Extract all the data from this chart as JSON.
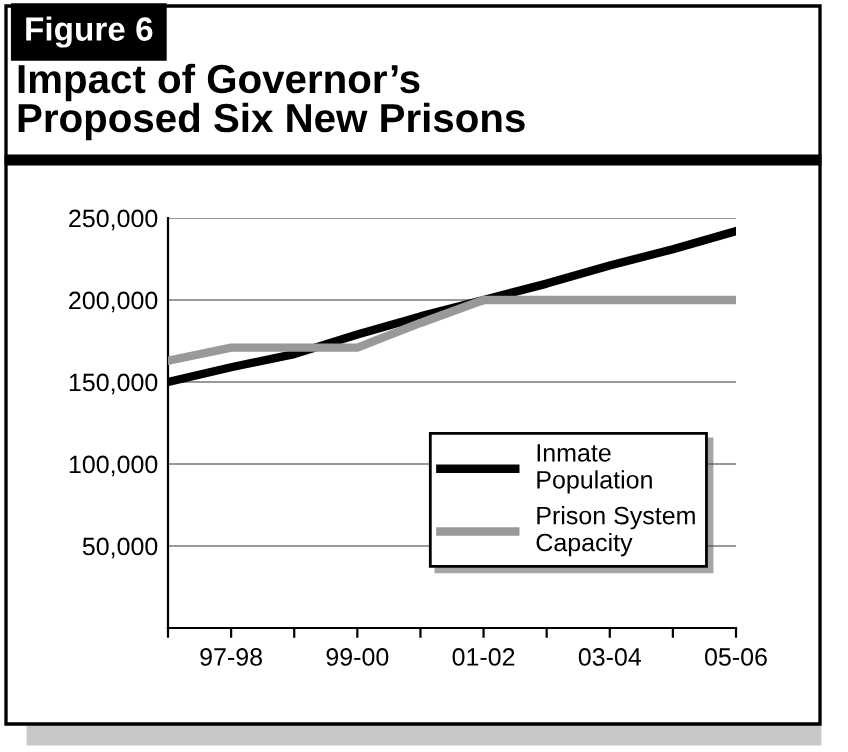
{
  "chart_data": {
    "type": "line",
    "title": "Impact of Governor’s\nProposed Six New Prisons",
    "annotations": [
      "Figure 6"
    ],
    "categories": [
      null,
      "97-98",
      null,
      "99-00",
      null,
      "01-02",
      null,
      "03-04",
      null,
      "05-06"
    ],
    "series": [
      {
        "name": "Inmate\nPopulation",
        "color": "#000000",
        "values": [
          150000,
          159000,
          167000,
          179000,
          190000,
          200000,
          210000,
          221000,
          231000,
          242000
        ]
      },
      {
        "name": "Prison System\nCapacity",
        "color": "#999999",
        "values": [
          163000,
          171000,
          171000,
          171000,
          186000,
          200000,
          200000,
          200000,
          200000,
          200000
        ]
      }
    ],
    "ylim": [
      0,
      250000
    ],
    "yticks": [
      {
        "value": 0,
        "label": null
      },
      {
        "value": 50000,
        "label": "50,000"
      },
      {
        "value": 100000,
        "label": "100,000"
      },
      {
        "value": 150000,
        "label": "150,000"
      },
      {
        "value": 200000,
        "label": "200,000"
      },
      {
        "value": 250000,
        "label": "250,000"
      }
    ],
    "grid": "y",
    "legend": "lower right",
    "marker": "none",
    "line_style": "solid"
  }
}
